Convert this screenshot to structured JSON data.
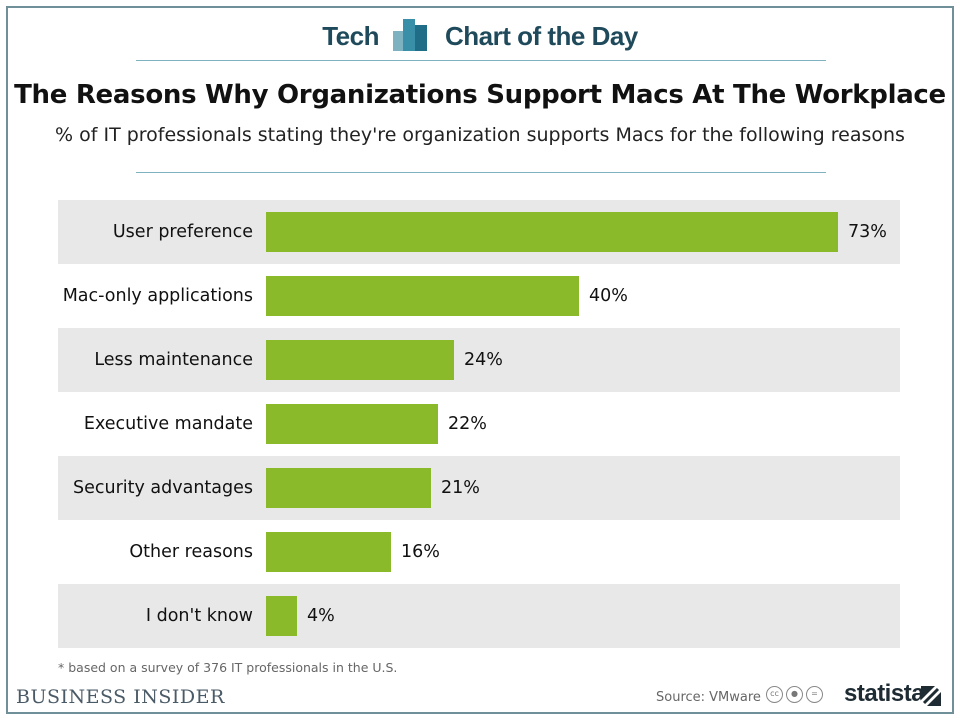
{
  "header": {
    "left": "Tech",
    "right": "Chart of the Day"
  },
  "chart_data": {
    "type": "bar",
    "orientation": "horizontal",
    "title": "The Reasons Why Organizations Support Macs At The Workplace",
    "subtitle": "% of IT professionals stating they're organization supports Macs for the following reasons",
    "categories": [
      "User preference",
      "Mac-only applications",
      "Less maintenance",
      "Executive mandate",
      "Security advantages",
      "Other reasons",
      "I don't know"
    ],
    "values": [
      73,
      40,
      24,
      22,
      21,
      16,
      4
    ],
    "value_labels": [
      "73%",
      "40%",
      "24%",
      "22%",
      "21%",
      "16%",
      "4%"
    ],
    "unit": "%",
    "xlim": [
      0,
      73
    ],
    "bar_color": "#8aba2a",
    "row_shade_color": "#e8e8e8",
    "grid": false,
    "legend": "none"
  },
  "footnote": "* based on a survey of 376 IT professionals in the U.S.",
  "footer": {
    "brand": "BUSINESS INSIDER",
    "source": "Source: VMware",
    "license_icons": [
      "cc-icon",
      "attribution-icon",
      "no-derivatives-icon"
    ],
    "statista": "statista"
  },
  "colors": {
    "accent": "#1f4a5c",
    "frame": "#6f8f99"
  }
}
